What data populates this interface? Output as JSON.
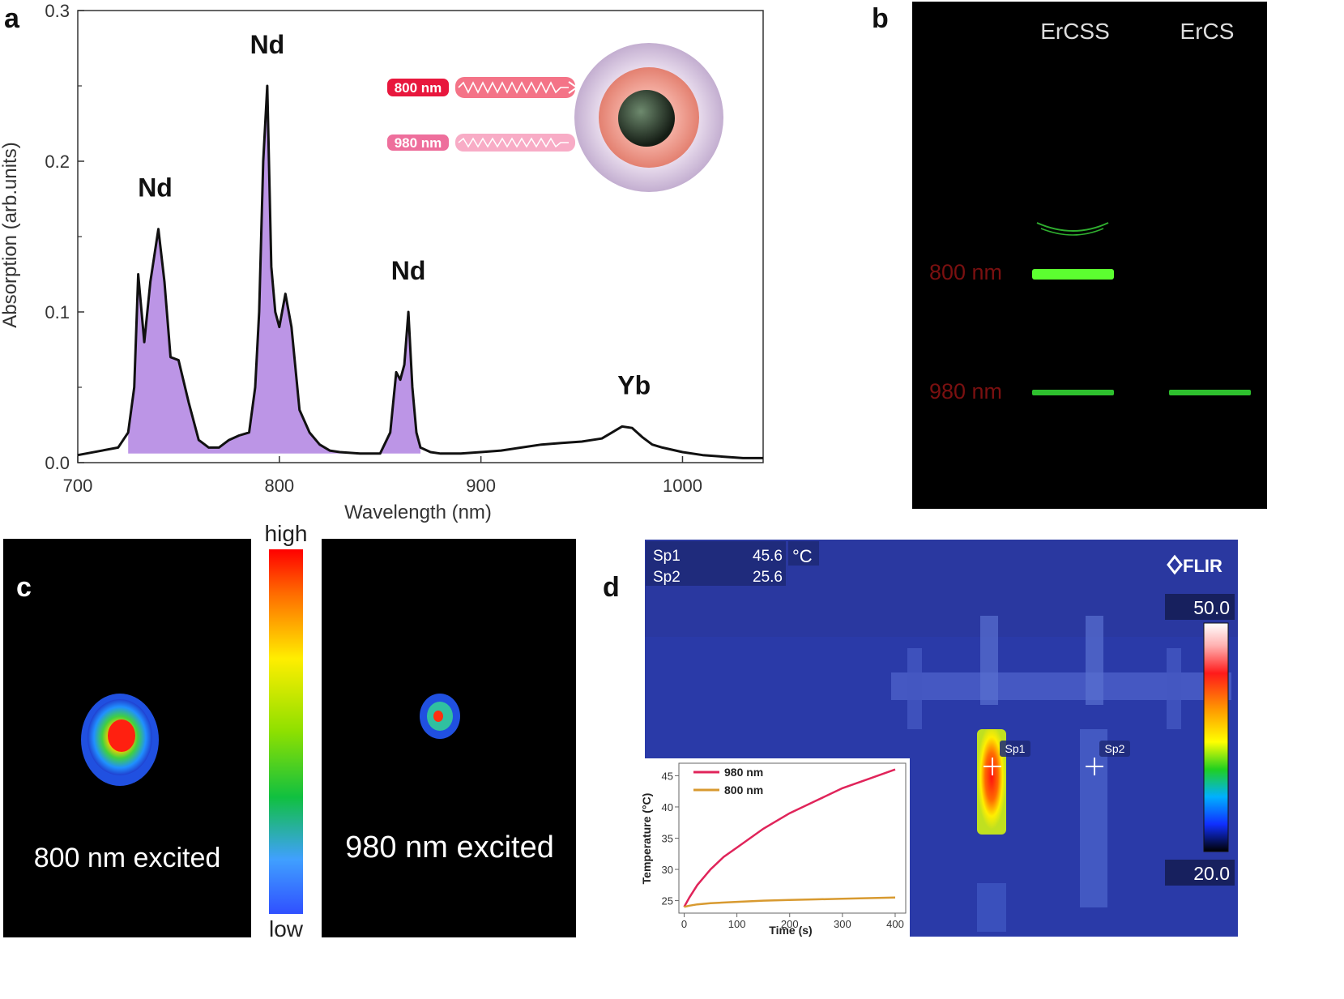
{
  "panels": {
    "a": {
      "letter": "a"
    },
    "b": {
      "letter": "b"
    },
    "c": {
      "letter": "c"
    },
    "d": {
      "letter": "d"
    }
  },
  "chart_data": [
    {
      "id": "a",
      "type": "area",
      "xlabel": "Wavelength (nm)",
      "ylabel": "Absorption (arb.units)",
      "xlim": [
        700,
        1040
      ],
      "ylim": [
        0.0,
        0.3
      ],
      "xticks": [
        700,
        800,
        900,
        1000
      ],
      "ytick_labels": [
        "0.0",
        "0.1",
        "0.2",
        "0.3"
      ],
      "yticks": [
        0.0,
        0.1,
        0.2,
        0.3
      ],
      "series": [
        {
          "name": "absorption",
          "x": [
            700,
            720,
            725,
            728,
            730,
            733,
            736,
            740,
            743,
            746,
            750,
            755,
            760,
            765,
            770,
            775,
            780,
            785,
            788,
            790,
            792,
            794,
            796,
            798,
            800,
            803,
            806,
            810,
            815,
            820,
            825,
            830,
            840,
            850,
            855,
            858,
            860,
            862,
            864,
            866,
            868,
            870,
            875,
            880,
            890,
            900,
            910,
            920,
            930,
            940,
            950,
            960,
            965,
            970,
            975,
            980,
            985,
            990,
            1000,
            1010,
            1020,
            1030,
            1040
          ],
          "y": [
            0.005,
            0.01,
            0.02,
            0.05,
            0.125,
            0.08,
            0.12,
            0.155,
            0.12,
            0.07,
            0.068,
            0.04,
            0.015,
            0.01,
            0.01,
            0.015,
            0.018,
            0.02,
            0.05,
            0.1,
            0.2,
            0.25,
            0.13,
            0.1,
            0.09,
            0.112,
            0.09,
            0.035,
            0.02,
            0.012,
            0.008,
            0.007,
            0.006,
            0.006,
            0.02,
            0.06,
            0.055,
            0.065,
            0.1,
            0.05,
            0.02,
            0.01,
            0.007,
            0.006,
            0.006,
            0.007,
            0.008,
            0.01,
            0.012,
            0.013,
            0.014,
            0.016,
            0.02,
            0.024,
            0.023,
            0.017,
            0.012,
            0.01,
            0.007,
            0.005,
            0.004,
            0.003,
            0.003
          ]
        }
      ],
      "peak_labels": [
        {
          "text": "Nd",
          "x": 740,
          "y": 0.155
        },
        {
          "text": "Nd",
          "x": 794,
          "y": 0.25
        },
        {
          "text": "Nd",
          "x": 864,
          "y": 0.1
        },
        {
          "text": "Yb",
          "x": 976,
          "y": 0.024
        }
      ],
      "inset_labels": [
        "800 nm",
        "980 nm"
      ]
    },
    {
      "id": "d-inset",
      "type": "line",
      "xlabel": "Time (s)",
      "ylabel": "Temperature (°C)",
      "xlim": [
        -10,
        420
      ],
      "ylim": [
        23,
        47
      ],
      "xticks": [
        0,
        100,
        200,
        300,
        400
      ],
      "yticks": [
        25,
        30,
        35,
        40,
        45
      ],
      "series": [
        {
          "name": "980 nm",
          "color": "#e0245a",
          "x": [
            0,
            10,
            25,
            50,
            75,
            100,
            150,
            200,
            250,
            300,
            350,
            400
          ],
          "y": [
            24,
            25.5,
            27.5,
            30,
            32,
            33.5,
            36.5,
            39,
            41,
            43,
            44.5,
            46
          ]
        },
        {
          "name": "800 nm",
          "color": "#d89a30",
          "x": [
            0,
            10,
            25,
            50,
            100,
            150,
            200,
            250,
            300,
            350,
            400
          ],
          "y": [
            24,
            24.2,
            24.4,
            24.6,
            24.8,
            25,
            25.1,
            25.2,
            25.3,
            25.4,
            25.5
          ]
        }
      ]
    }
  ],
  "panel_b": {
    "lanes": [
      "ErCSS",
      "ErCS"
    ],
    "rows": [
      "800 nm",
      "980 nm"
    ]
  },
  "panel_c": {
    "left_caption": "800 nm excited",
    "right_caption": "980 nm excited",
    "scale_high": "high",
    "scale_low": "low"
  },
  "panel_d": {
    "sp1_label": "Sp1",
    "sp1_value": "45.6",
    "sp2_label": "Sp2",
    "sp2_value": "25.6",
    "unit": "°C",
    "brand": "FLIR",
    "scale_max": "50.0",
    "scale_min": "20.0",
    "marker1": "Sp1",
    "marker2": "Sp2"
  },
  "colors": {
    "fill": "#b58ae3",
    "laser_800": "#e8173d",
    "laser_980": "#ee6f9c",
    "green": "#39d42a",
    "dark_red": "#7a1010",
    "thermal_bg": "#2a3aa8"
  }
}
